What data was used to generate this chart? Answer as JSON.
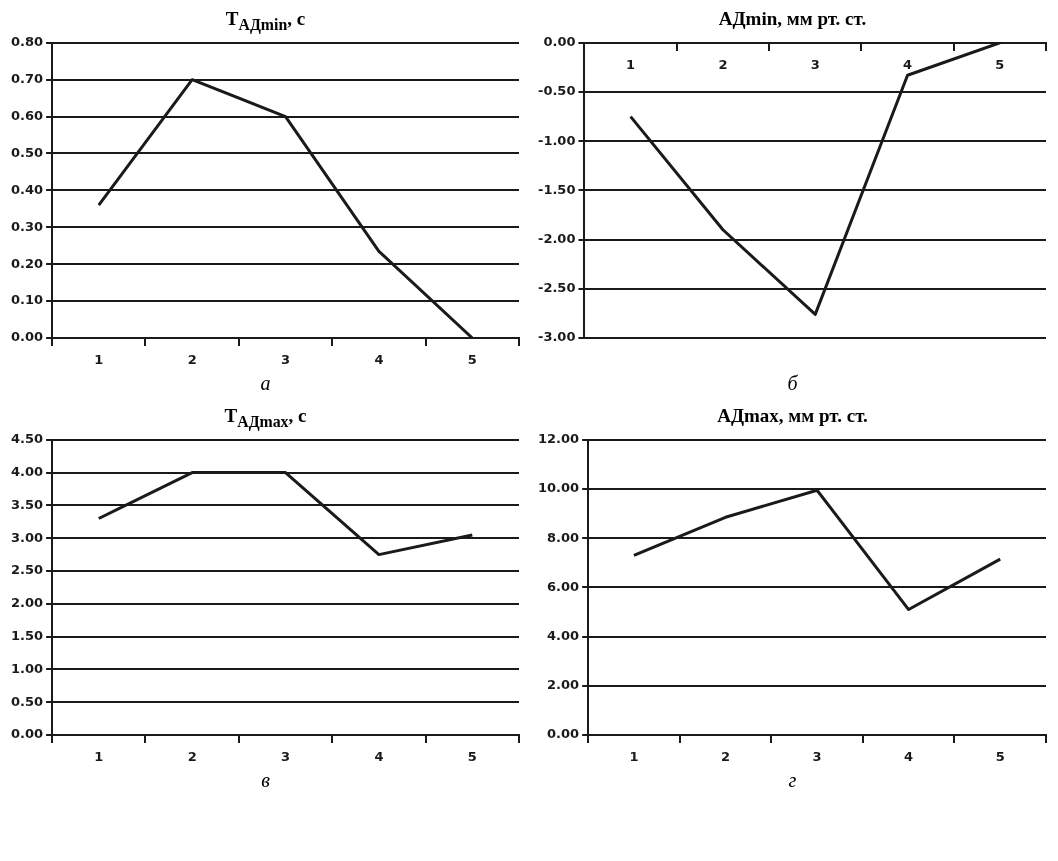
{
  "chart_data": [
    {
      "type": "line",
      "title": "T$_{АДmin}$, с",
      "categories": [
        "1",
        "2",
        "3",
        "4",
        "5"
      ],
      "values": [
        0.36,
        0.7,
        0.6,
        0.235,
        0.0
      ],
      "color": "#1a1a1a",
      "ylim": [
        0,
        0.8
      ],
      "yticks": [
        {
          "value": 0,
          "label": "0.00"
        },
        {
          "value": 0.1,
          "label": "0.10"
        },
        {
          "value": 0.2,
          "label": "0.20"
        },
        {
          "value": 0.3,
          "label": "0.30"
        },
        {
          "value": 0.4,
          "label": "0.40"
        },
        {
          "value": 0.5,
          "label": "0.50"
        },
        {
          "value": 0.6,
          "label": "0.60"
        },
        {
          "value": 0.7,
          "label": "0.70"
        },
        {
          "value": 0.8,
          "label": "0.80"
        }
      ],
      "grid": "y",
      "annotations": [
        "а"
      ]
    },
    {
      "type": "line",
      "title": "АДmin, мм рт. ст.",
      "categories": [
        "1",
        "2",
        "3",
        "4",
        "5"
      ],
      "values": [
        -0.75,
        -1.9,
        -2.76,
        -0.33,
        0.0
      ],
      "color": "#1a1a1a",
      "ylim": [
        -3,
        0
      ],
      "yticks": [
        {
          "value": -3,
          "label": "-3.00"
        },
        {
          "value": -2.5,
          "label": "-2.50"
        },
        {
          "value": -2,
          "label": "-2.00"
        },
        {
          "value": -1.5,
          "label": "-1.50"
        },
        {
          "value": -1,
          "label": "-1.00"
        },
        {
          "value": -0.5,
          "label": "-0.50"
        },
        {
          "value": 0,
          "label": "0.00"
        }
      ],
      "grid": "y",
      "annotations": [
        "б"
      ]
    },
    {
      "type": "line",
      "title": "T$_{АДmax}$, с",
      "categories": [
        "1",
        "2",
        "3",
        "4",
        "5"
      ],
      "values": [
        3.3,
        4.0,
        4.0,
        2.75,
        3.05
      ],
      "color": "#1a1a1a",
      "ylim": [
        0,
        4.5
      ],
      "yticks": [
        {
          "value": 0,
          "label": "0.00"
        },
        {
          "value": 0.5,
          "label": "0.50"
        },
        {
          "value": 1,
          "label": "1.00"
        },
        {
          "value": 1.5,
          "label": "1.50"
        },
        {
          "value": 2,
          "label": "2.00"
        },
        {
          "value": 2.5,
          "label": "2.50"
        },
        {
          "value": 3,
          "label": "3.00"
        },
        {
          "value": 3.5,
          "label": "3.50"
        },
        {
          "value": 4,
          "label": "4.00"
        },
        {
          "value": 4.5,
          "label": "4.50"
        }
      ],
      "grid": "y",
      "annotations": [
        "в"
      ]
    },
    {
      "type": "line",
      "title": "АДmax, мм рт. ст.",
      "categories": [
        "1",
        "2",
        "3",
        "4",
        "5"
      ],
      "values": [
        7.3,
        8.85,
        9.95,
        5.1,
        7.15
      ],
      "color": "#1a1a1a",
      "ylim": [
        0,
        12
      ],
      "yticks": [
        {
          "value": 0,
          "label": "0.00"
        },
        {
          "value": 2,
          "label": "2.00"
        },
        {
          "value": 4,
          "label": "4.00"
        },
        {
          "value": 6,
          "label": "6.00"
        },
        {
          "value": 8,
          "label": "8.00"
        },
        {
          "value": 10,
          "label": "10.00"
        },
        {
          "value": 12,
          "label": "12.00"
        }
      ],
      "grid": "y",
      "annotations": [
        "г"
      ]
    }
  ]
}
